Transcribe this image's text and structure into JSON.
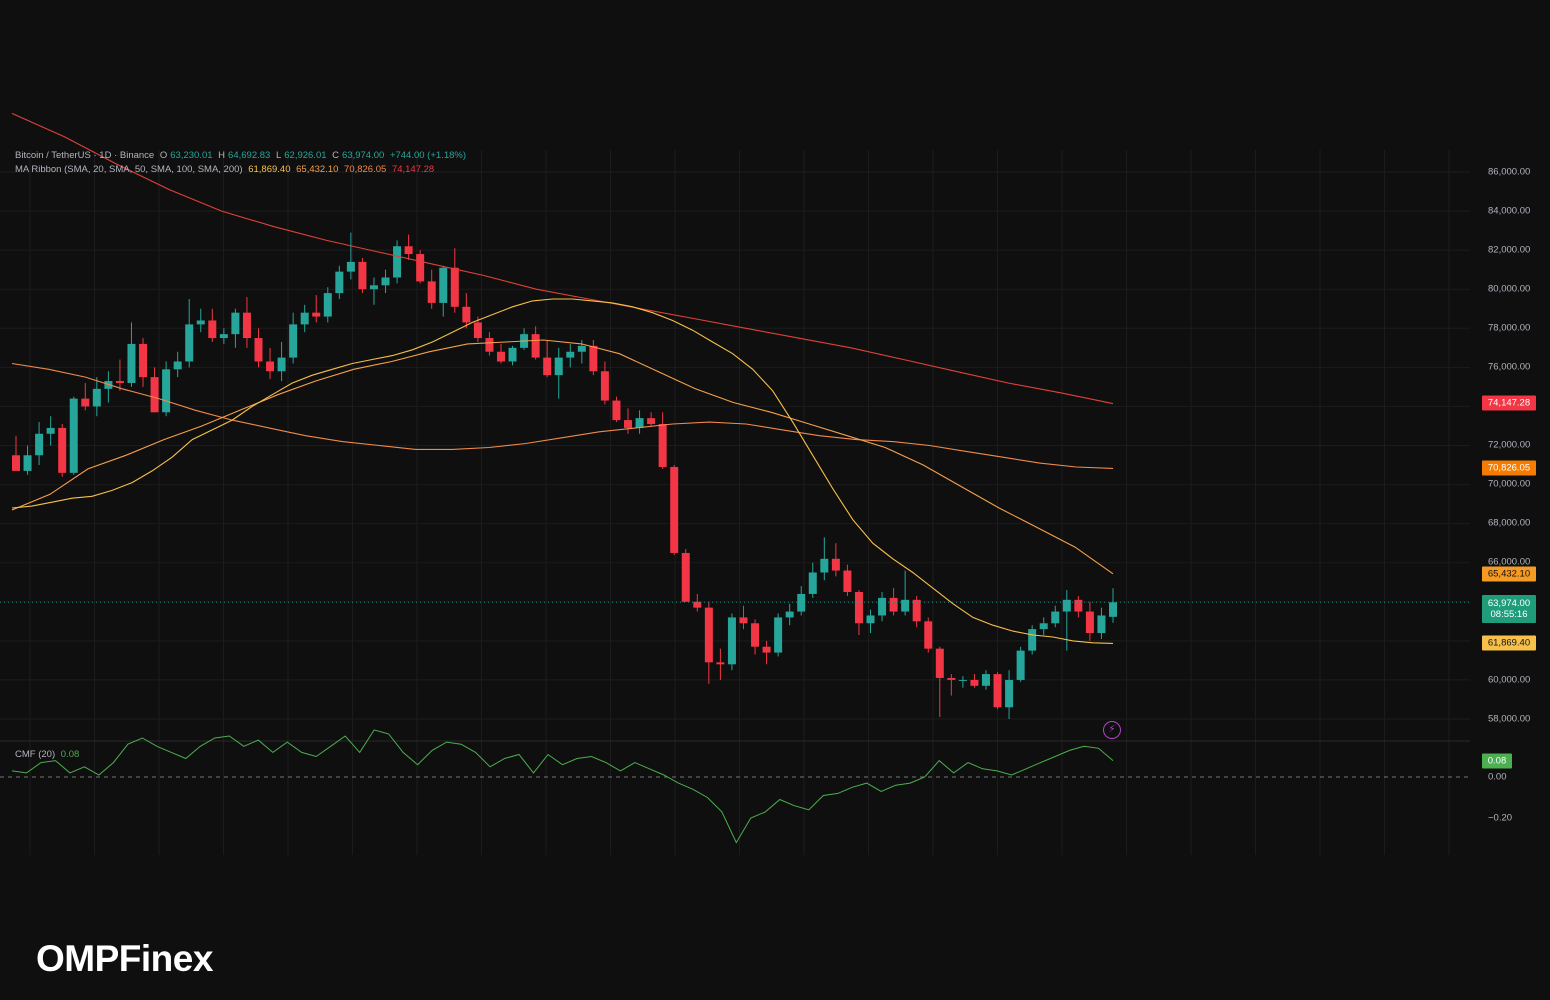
{
  "header": {
    "symbol": "Bitcoin / TetherUS · 1D · Binance",
    "open_label": "O",
    "open": "63,230.01",
    "high_label": "H",
    "high": "64,692.83",
    "low_label": "L",
    "low": "62,926.01",
    "close_label": "C",
    "close": "63,974.00",
    "change": "+744.00 (+1.18%)"
  },
  "ma_ribbon": {
    "label": "MA Ribbon (SMA, 20, SMA, 50, SMA, 100, SMA, 200)",
    "v20": "61,869.40",
    "v50": "65,432.10",
    "v100": "70,826.05",
    "v200": "74,147.28"
  },
  "cmf": {
    "label": "CMF (20)",
    "value": "0.08"
  },
  "price_axis": {
    "labels": [
      "86,000.00",
      "84,000.00",
      "82,000.00",
      "80,000.00",
      "78,000.00",
      "76,000.00",
      "72,000.00",
      "70,000.00",
      "68,000.00",
      "66,000.00",
      "60,000.00",
      "58,000.00"
    ]
  },
  "cmf_axis": {
    "labels": [
      "0.00",
      "−0.20"
    ]
  },
  "price_tags": {
    "ma200": "74,147.28",
    "ma100": "70,826.05",
    "ma50": "65,432.10",
    "last_price": "63,974.00",
    "countdown": "08:55:16",
    "ma20": "61,869.40",
    "cmf": "0.08"
  },
  "colors": {
    "up": "#26a69a",
    "down": "#f23645",
    "ma20": "#f7c04a",
    "ma50": "#f5a04a",
    "ma100": "#f08a4b",
    "ma200": "#e0413a",
    "cmf": "#4caf50"
  },
  "icons": {
    "alert": "lightning-icon"
  },
  "brand": {
    "logo_text": "OMPFinex"
  },
  "chart_data": {
    "type": "candlestick",
    "symbol": "Bitcoin / TetherUS",
    "interval": "1D",
    "ylim": [
      57000,
      87000
    ],
    "candles": [
      {
        "o": 71500,
        "h": 72500,
        "l": 70800,
        "c": 70700
      },
      {
        "o": 70700,
        "h": 72000,
        "l": 70500,
        "c": 71500
      },
      {
        "o": 71500,
        "h": 73200,
        "l": 71000,
        "c": 72600
      },
      {
        "o": 72600,
        "h": 73500,
        "l": 72000,
        "c": 72900
      },
      {
        "o": 72900,
        "h": 73100,
        "l": 70400,
        "c": 70600
      },
      {
        "o": 70600,
        "h": 74500,
        "l": 70500,
        "c": 74400
      },
      {
        "o": 74400,
        "h": 75200,
        "l": 73800,
        "c": 74000
      },
      {
        "o": 74000,
        "h": 75500,
        "l": 73500,
        "c": 74900
      },
      {
        "o": 74900,
        "h": 75800,
        "l": 74200,
        "c": 75300
      },
      {
        "o": 75300,
        "h": 76400,
        "l": 74800,
        "c": 75200
      },
      {
        "o": 75200,
        "h": 78300,
        "l": 75000,
        "c": 77200
      },
      {
        "o": 77200,
        "h": 77500,
        "l": 75000,
        "c": 75500
      },
      {
        "o": 75500,
        "h": 76000,
        "l": 73700,
        "c": 73700
      },
      {
        "o": 73700,
        "h": 76300,
        "l": 73500,
        "c": 75900
      },
      {
        "o": 75900,
        "h": 76800,
        "l": 75500,
        "c": 76300
      },
      {
        "o": 76300,
        "h": 79500,
        "l": 76000,
        "c": 78200
      },
      {
        "o": 78200,
        "h": 79000,
        "l": 77800,
        "c": 78400
      },
      {
        "o": 78400,
        "h": 79000,
        "l": 77300,
        "c": 77500
      },
      {
        "o": 77500,
        "h": 78000,
        "l": 77200,
        "c": 77700
      },
      {
        "o": 77700,
        "h": 79000,
        "l": 77000,
        "c": 78800
      },
      {
        "o": 78800,
        "h": 79600,
        "l": 77000,
        "c": 77500
      },
      {
        "o": 77500,
        "h": 78000,
        "l": 76000,
        "c": 76300
      },
      {
        "o": 76300,
        "h": 77000,
        "l": 75400,
        "c": 75800
      },
      {
        "o": 75800,
        "h": 77300,
        "l": 75300,
        "c": 76500
      },
      {
        "o": 76500,
        "h": 78800,
        "l": 76200,
        "c": 78200
      },
      {
        "o": 78200,
        "h": 79200,
        "l": 77800,
        "c": 78800
      },
      {
        "o": 78800,
        "h": 79700,
        "l": 78300,
        "c": 78600
      },
      {
        "o": 78600,
        "h": 80100,
        "l": 78300,
        "c": 79800
      },
      {
        "o": 79800,
        "h": 81200,
        "l": 79500,
        "c": 80900
      },
      {
        "o": 80900,
        "h": 82900,
        "l": 80500,
        "c": 81400
      },
      {
        "o": 81400,
        "h": 81600,
        "l": 79800,
        "c": 80000
      },
      {
        "o": 80000,
        "h": 80600,
        "l": 79200,
        "c": 80200
      },
      {
        "o": 80200,
        "h": 81000,
        "l": 79800,
        "c": 80600
      },
      {
        "o": 80600,
        "h": 82500,
        "l": 80300,
        "c": 82200
      },
      {
        "o": 82200,
        "h": 82800,
        "l": 81500,
        "c": 81800
      },
      {
        "o": 81800,
        "h": 82000,
        "l": 80300,
        "c": 80400
      },
      {
        "o": 80400,
        "h": 81000,
        "l": 79000,
        "c": 79300
      },
      {
        "o": 79300,
        "h": 81200,
        "l": 78600,
        "c": 81100
      },
      {
        "o": 81100,
        "h": 82100,
        "l": 78800,
        "c": 79100
      },
      {
        "o": 79100,
        "h": 79800,
        "l": 78000,
        "c": 78300
      },
      {
        "o": 78300,
        "h": 78600,
        "l": 77300,
        "c": 77500
      },
      {
        "o": 77500,
        "h": 77800,
        "l": 76600,
        "c": 76800
      },
      {
        "o": 76800,
        "h": 77200,
        "l": 76200,
        "c": 76300
      },
      {
        "o": 76300,
        "h": 77100,
        "l": 76100,
        "c": 77000
      },
      {
        "o": 77000,
        "h": 78000,
        "l": 76900,
        "c": 77700
      },
      {
        "o": 77700,
        "h": 78100,
        "l": 76400,
        "c": 76500
      },
      {
        "o": 76500,
        "h": 77400,
        "l": 75500,
        "c": 75600
      },
      {
        "o": 75600,
        "h": 77000,
        "l": 74400,
        "c": 76500
      },
      {
        "o": 76500,
        "h": 77200,
        "l": 76000,
        "c": 76800
      },
      {
        "o": 76800,
        "h": 77400,
        "l": 76200,
        "c": 77100
      },
      {
        "o": 77100,
        "h": 77400,
        "l": 75600,
        "c": 75800
      },
      {
        "o": 75800,
        "h": 76300,
        "l": 74100,
        "c": 74300
      },
      {
        "o": 74300,
        "h": 74500,
        "l": 73200,
        "c": 73300
      },
      {
        "o": 73300,
        "h": 73900,
        "l": 72600,
        "c": 72900
      },
      {
        "o": 72900,
        "h": 73800,
        "l": 72600,
        "c": 73400
      },
      {
        "o": 73400,
        "h": 73700,
        "l": 73000,
        "c": 73100
      },
      {
        "o": 73100,
        "h": 73700,
        "l": 70800,
        "c": 70900
      },
      {
        "o": 70900,
        "h": 71000,
        "l": 66400,
        "c": 66500
      },
      {
        "o": 66500,
        "h": 66700,
        "l": 64000,
        "c": 64000
      },
      {
        "o": 64000,
        "h": 64400,
        "l": 63500,
        "c": 63700
      },
      {
        "o": 63700,
        "h": 64000,
        "l": 59800,
        "c": 60900
      },
      {
        "o": 60900,
        "h": 61600,
        "l": 60000,
        "c": 60800
      },
      {
        "o": 60800,
        "h": 63400,
        "l": 60500,
        "c": 63200
      },
      {
        "o": 63200,
        "h": 63800,
        "l": 62600,
        "c": 62900
      },
      {
        "o": 62900,
        "h": 63100,
        "l": 61300,
        "c": 61700
      },
      {
        "o": 61700,
        "h": 62000,
        "l": 60800,
        "c": 61400
      },
      {
        "o": 61400,
        "h": 63400,
        "l": 61200,
        "c": 63200
      },
      {
        "o": 63200,
        "h": 63900,
        "l": 62800,
        "c": 63500
      },
      {
        "o": 63500,
        "h": 64800,
        "l": 63300,
        "c": 64400
      },
      {
        "o": 64400,
        "h": 66000,
        "l": 64200,
        "c": 65500
      },
      {
        "o": 65500,
        "h": 67300,
        "l": 65100,
        "c": 66200
      },
      {
        "o": 66200,
        "h": 67000,
        "l": 65300,
        "c": 65600
      },
      {
        "o": 65600,
        "h": 65900,
        "l": 64300,
        "c": 64500
      },
      {
        "o": 64500,
        "h": 64600,
        "l": 62300,
        "c": 62900
      },
      {
        "o": 62900,
        "h": 63600,
        "l": 62400,
        "c": 63300
      },
      {
        "o": 63300,
        "h": 64500,
        "l": 63000,
        "c": 64200
      },
      {
        "o": 64200,
        "h": 64700,
        "l": 63300,
        "c": 63500
      },
      {
        "o": 63500,
        "h": 65600,
        "l": 63300,
        "c": 64100
      },
      {
        "o": 64100,
        "h": 64300,
        "l": 62700,
        "c": 63000
      },
      {
        "o": 63000,
        "h": 63200,
        "l": 61400,
        "c": 61600
      },
      {
        "o": 61600,
        "h": 61700,
        "l": 58100,
        "c": 60100
      },
      {
        "o": 60100,
        "h": 60300,
        "l": 59200,
        "c": 60000
      },
      {
        "o": 60000,
        "h": 60200,
        "l": 59600,
        "c": 60000
      },
      {
        "o": 60000,
        "h": 60300,
        "l": 59600,
        "c": 59700
      },
      {
        "o": 59700,
        "h": 60500,
        "l": 59500,
        "c": 60300
      },
      {
        "o": 60300,
        "h": 60400,
        "l": 58500,
        "c": 58600
      },
      {
        "o": 58600,
        "h": 60500,
        "l": 58000,
        "c": 60000
      },
      {
        "o": 60000,
        "h": 61700,
        "l": 59900,
        "c": 61500
      },
      {
        "o": 61500,
        "h": 62800,
        "l": 61300,
        "c": 62600
      },
      {
        "o": 62600,
        "h": 63200,
        "l": 62300,
        "c": 62900
      },
      {
        "o": 62900,
        "h": 63800,
        "l": 62700,
        "c": 63500
      },
      {
        "o": 63500,
        "h": 64600,
        "l": 61500,
        "c": 64100
      },
      {
        "o": 64100,
        "h": 64300,
        "l": 63200,
        "c": 63500
      },
      {
        "o": 63500,
        "h": 64000,
        "l": 62000,
        "c": 62400
      },
      {
        "o": 62400,
        "h": 63700,
        "l": 62100,
        "c": 63300
      },
      {
        "o": 63230,
        "h": 64693,
        "l": 62926,
        "c": 63974
      }
    ],
    "ma20": [
      68800,
      68900,
      69100,
      69300,
      69400,
      69700,
      70100,
      70700,
      71400,
      72300,
      72800,
      73300,
      74000,
      74600,
      75200,
      75600,
      75900,
      76200,
      76400,
      76600,
      76900,
      77300,
      77800,
      78300,
      78700,
      79100,
      79400,
      79500,
      79500,
      79400,
      79300,
      79100,
      78800,
      78400,
      77900,
      77300,
      76700,
      75900,
      74800,
      73200,
      71500,
      69800,
      68200,
      67000,
      66200,
      65500,
      64700,
      63900,
      63200,
      62800,
      62500,
      62300,
      62200,
      62000,
      61900,
      61870
    ],
    "ma50": [
      68700,
      69500,
      70800,
      71500,
      72300,
      73000,
      73800,
      74600,
      75300,
      75900,
      76300,
      76800,
      77200,
      77300,
      77400,
      77200,
      76700,
      75800,
      74900,
      74200,
      73700,
      73100,
      72500,
      71900,
      71000,
      69900,
      68800,
      67800,
      66800,
      65432
    ],
    "ma100": [
      76200,
      75900,
      75500,
      74900,
      74400,
      73800,
      73300,
      72900,
      72500,
      72200,
      72000,
      71800,
      71800,
      71900,
      72100,
      72400,
      72700,
      72900,
      73100,
      73200,
      73100,
      72800,
      72500,
      72300,
      72200,
      72000,
      71700,
      71400,
      71100,
      70900,
      70826
    ],
    "ma200": [
      89000,
      87800,
      86400,
      85100,
      84000,
      83200,
      82500,
      81900,
      81300,
      80700,
      80000,
      79500,
      79000,
      78500,
      78000,
      77500,
      77000,
      76400,
      75800,
      75200,
      74700,
      74147
    ],
    "cmf_values": [
      0.03,
      0.02,
      0.07,
      0.08,
      0.02,
      0.05,
      0.01,
      0.07,
      0.16,
      0.19,
      0.15,
      0.12,
      0.09,
      0.15,
      0.19,
      0.2,
      0.15,
      0.18,
      0.12,
      0.17,
      0.12,
      0.1,
      0.15,
      0.2,
      0.12,
      0.23,
      0.21,
      0.12,
      0.06,
      0.13,
      0.17,
      0.16,
      0.12,
      0.05,
      0.09,
      0.11,
      0.02,
      0.11,
      0.06,
      0.09,
      0.1,
      0.07,
      0.03,
      0.07,
      0.04,
      0.01,
      -0.03,
      -0.06,
      -0.1,
      -0.17,
      -0.32,
      -0.2,
      -0.17,
      -0.11,
      -0.14,
      -0.16,
      -0.09,
      -0.08,
      -0.05,
      -0.03,
      -0.07,
      -0.04,
      -0.03,
      0.0,
      0.08,
      0.02,
      0.07,
      0.04,
      0.03,
      0.01,
      0.04,
      0.07,
      0.1,
      0.13,
      0.15,
      0.14,
      0.08
    ],
    "cmf_ylim": [
      -0.35,
      0.3
    ]
  }
}
